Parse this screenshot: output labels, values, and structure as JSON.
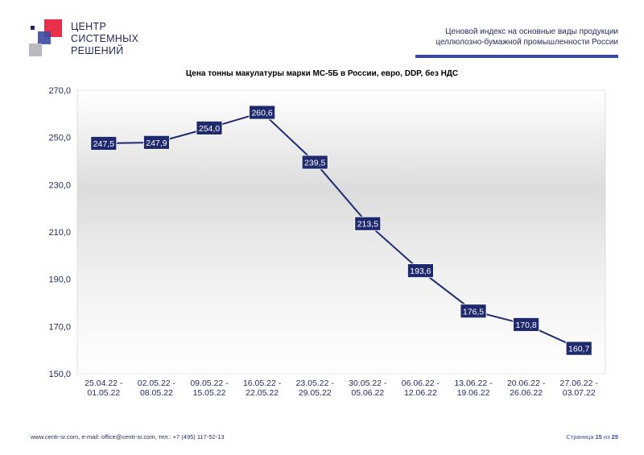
{
  "header": {
    "logo_lines": [
      "ЦЕНТР",
      "СИСТЕМНЫХ",
      "РЕШЕНИЙ"
    ],
    "title_line1": "Ценовой индекс на основные виды продукции",
    "title_line2": "целлюлозно-бумажной промышленности России"
  },
  "footer": {
    "contacts": "www.centr-sr.com, e-mail: office@centr-sr.com, тел.: +7 (495) 117-52-13",
    "page_prefix": "Страница",
    "page_current": "15",
    "page_sep": "из",
    "page_total": "25"
  },
  "colors": {
    "line": "#1f2a6e",
    "label_bg": "#1f2a6e",
    "label_text": "#ffffff",
    "axis_text": "#1f2a5a",
    "logo_red": "#e8304b",
    "logo_blue": "#3b4aa0",
    "logo_grey": "#b9b9bf"
  },
  "chart_data": {
    "type": "line",
    "title": "Цена тонны макулатуры марки МС-5Б в России, евро, DDP, без НДС",
    "categories": [
      [
        "25.04.22 -",
        "01.05.22"
      ],
      [
        "02.05.22 -",
        "08.05.22"
      ],
      [
        "09.05.22 -",
        "15.05.22"
      ],
      [
        "16.05.22 -",
        "22.05.22"
      ],
      [
        "23.05.22 -",
        "29.05.22"
      ],
      [
        "30.05.22 -",
        "05.06.22"
      ],
      [
        "06.06.22 -",
        "12.06.22"
      ],
      [
        "13.06.22 -",
        "19.06.22"
      ],
      [
        "20.06.22 -",
        "26.06.22"
      ],
      [
        "27.06.22 -",
        "03.07.22"
      ]
    ],
    "values": [
      247.5,
      247.9,
      254.0,
      260.6,
      239.5,
      213.5,
      193.6,
      176.5,
      170.8,
      160.7
    ],
    "value_labels": [
      "247,5",
      "247,9",
      "254,0",
      "260,6",
      "239,5",
      "213,5",
      "193,6",
      "176,5",
      "170,8",
      "160,7"
    ],
    "y_ticks": [
      "150,0",
      "170,0",
      "190,0",
      "210,0",
      "230,0",
      "250,0",
      "270,0"
    ],
    "y_tick_values": [
      150,
      170,
      190,
      210,
      230,
      250,
      270
    ],
    "ylim": [
      150,
      270
    ],
    "grid": false,
    "legend": "none"
  }
}
